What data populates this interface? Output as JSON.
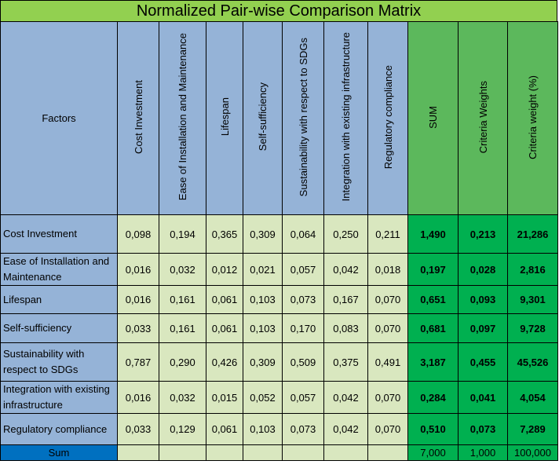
{
  "title": "Normalized Pair-wise Comparison Matrix",
  "header": {
    "factors": "Factors",
    "criteria": [
      "Cost Investment",
      "Ease of Installation and Maintenance",
      "Lifespan",
      "Self-sufficiency",
      "Sustainability with respect to SDGs",
      "Integration with existing infrastructure",
      "Regulatory compliance"
    ],
    "sum": "SUM",
    "weights": "Criteria Weights",
    "weights_pct": "Criteria weight (%)"
  },
  "rows": [
    {
      "label": "Cost Investment",
      "values": [
        "0,098",
        "0,194",
        "0,365",
        "0,309",
        "0,064",
        "0,250",
        "0,211"
      ],
      "sum": "1,490",
      "weight": "0,213",
      "pct": "21,286"
    },
    {
      "label": "Ease of Installation and Maintenance",
      "values": [
        "0,016",
        "0,032",
        "0,012",
        "0,021",
        "0,057",
        "0,042",
        "0,018"
      ],
      "sum": "0,197",
      "weight": "0,028",
      "pct": "2,816"
    },
    {
      "label": "Lifespan",
      "values": [
        "0,016",
        "0,161",
        "0,061",
        "0,103",
        "0,073",
        "0,167",
        "0,070"
      ],
      "sum": "0,651",
      "weight": "0,093",
      "pct": "9,301"
    },
    {
      "label": "Self-sufficiency",
      "values": [
        "0,033",
        "0,161",
        "0,061",
        "0,103",
        "0,170",
        "0,083",
        "0,070"
      ],
      "sum": "0,681",
      "weight": "0,097",
      "pct": "9,728"
    },
    {
      "label": "Sustainability with respect to SDGs",
      "values": [
        "0,787",
        "0,290",
        "0,426",
        "0,309",
        "0,509",
        "0,375",
        "0,491"
      ],
      "sum": "3,187",
      "weight": "0,455",
      "pct": "45,526"
    },
    {
      "label": "Integration with existing infrastructure",
      "values": [
        "0,016",
        "0,032",
        "0,015",
        "0,052",
        "0,057",
        "0,042",
        "0,070"
      ],
      "sum": "0,284",
      "weight": "0,041",
      "pct": "4,054"
    },
    {
      "label": "Regulatory compliance",
      "values": [
        "0,033",
        "0,129",
        "0,061",
        "0,103",
        "0,073",
        "0,042",
        "0,070"
      ],
      "sum": "0,510",
      "weight": "0,073",
      "pct": "7,289"
    }
  ],
  "footer": {
    "label": "Sum",
    "sum": "7,000",
    "weight": "1,000",
    "pct": "100,000"
  }
}
